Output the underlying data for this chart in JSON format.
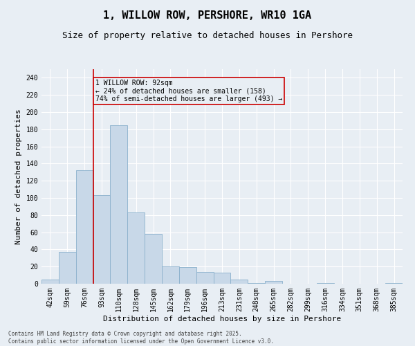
{
  "title": "1, WILLOW ROW, PERSHORE, WR10 1GA",
  "subtitle": "Size of property relative to detached houses in Pershore",
  "xlabel": "Distribution of detached houses by size in Pershore",
  "ylabel": "Number of detached properties",
  "footer": "Contains HM Land Registry data © Crown copyright and database right 2025.\nContains public sector information licensed under the Open Government Licence v3.0.",
  "annotation_title": "1 WILLOW ROW: 92sqm",
  "annotation_line1": "← 24% of detached houses are smaller (158)",
  "annotation_line2": "74% of semi-detached houses are larger (493) →",
  "bar_color": "#c8d8e8",
  "bar_edge_color": "#8ab0cc",
  "marker_line_color": "#cc0000",
  "categories": [
    "42sqm",
    "59sqm",
    "76sqm",
    "93sqm",
    "110sqm",
    "128sqm",
    "145sqm",
    "162sqm",
    "179sqm",
    "196sqm",
    "213sqm",
    "231sqm",
    "248sqm",
    "265sqm",
    "282sqm",
    "299sqm",
    "316sqm",
    "334sqm",
    "351sqm",
    "368sqm",
    "385sqm"
  ],
  "values": [
    5,
    37,
    132,
    103,
    185,
    83,
    58,
    20,
    19,
    14,
    13,
    5,
    1,
    3,
    0,
    0,
    1,
    0,
    0,
    0,
    1
  ],
  "ylim": [
    0,
    250
  ],
  "yticks": [
    0,
    20,
    40,
    60,
    80,
    100,
    120,
    140,
    160,
    180,
    200,
    220,
    240
  ],
  "bg_color": "#e8eef4",
  "grid_color": "#ffffff",
  "title_fontsize": 11,
  "subtitle_fontsize": 9,
  "axis_label_fontsize": 8,
  "tick_fontsize": 7,
  "annotation_fontsize": 7,
  "footer_fontsize": 5.5
}
